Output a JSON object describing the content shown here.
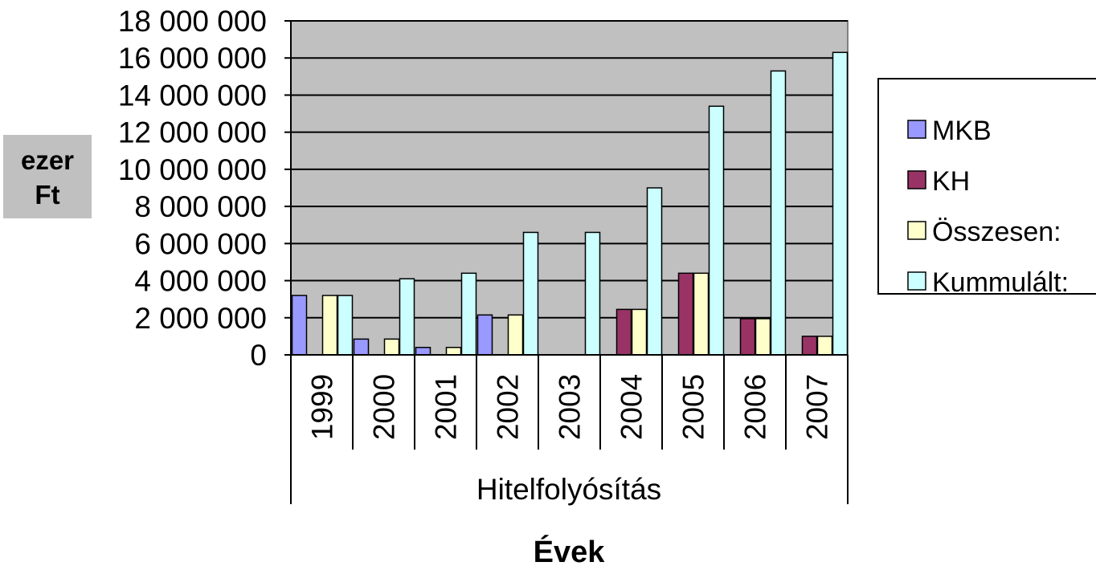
{
  "chart_data": {
    "type": "bar",
    "categories": [
      "1999",
      "2000",
      "2001",
      "2002",
      "2003",
      "2004",
      "2005",
      "2006",
      "2007"
    ],
    "group_label": "Hitelfolyósítás",
    "series": [
      {
        "name": "MKB",
        "color": "#9999ff",
        "values": [
          3200000,
          850000,
          400000,
          2150000,
          0,
          0,
          0,
          0,
          0
        ]
      },
      {
        "name": "KH",
        "color": "#993366",
        "values": [
          0,
          0,
          0,
          0,
          0,
          2450000,
          4400000,
          1950000,
          1000000
        ]
      },
      {
        "name": "Összesen:",
        "color": "#ffffcc",
        "values": [
          3200000,
          850000,
          400000,
          2150000,
          0,
          2450000,
          4400000,
          1950000,
          1000000
        ]
      },
      {
        "name": "Kummulált:",
        "color": "#ccffff",
        "values": [
          3200000,
          4100000,
          4400000,
          6600000,
          6600000,
          9000000,
          13400000,
          15300000,
          16300000
        ]
      }
    ],
    "xlabel": "Évek",
    "ylabel_line1": "ezer",
    "ylabel_line2": "Ft",
    "ylim": [
      0,
      18000000
    ],
    "yticks": [
      0,
      2000000,
      4000000,
      6000000,
      8000000,
      10000000,
      12000000,
      14000000,
      16000000,
      18000000
    ],
    "ytick_labels": [
      "0",
      "2 000 000",
      "4 000 000",
      "6 000 000",
      "8 000 000",
      "10 000 000",
      "12 000 000",
      "14 000 000",
      "16 000 000",
      "18 000 000"
    ],
    "grid": true,
    "legend_position": "right",
    "plot_background": "#c0c0c0"
  }
}
